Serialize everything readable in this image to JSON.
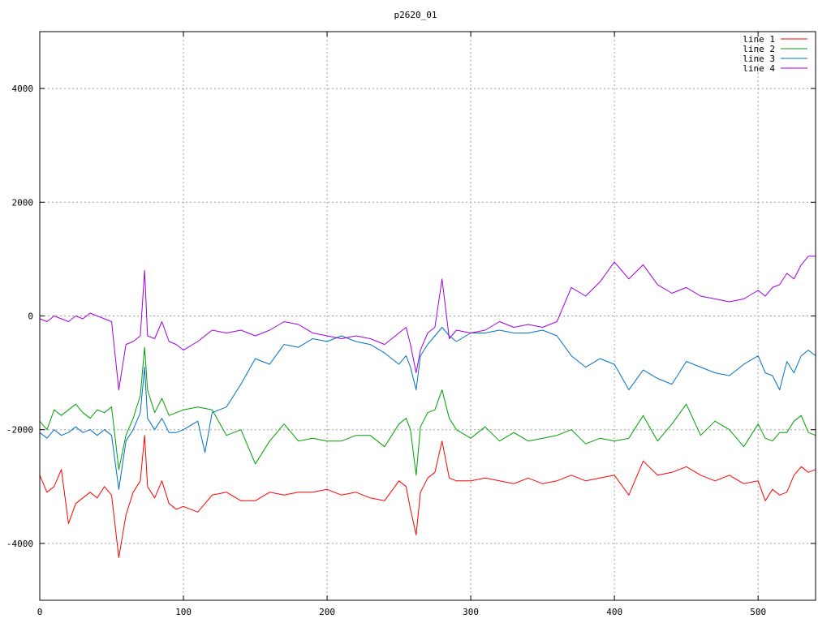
{
  "chart_data": {
    "type": "line",
    "title": "p2620_01",
    "xlabel": "",
    "ylabel": "",
    "xlim": [
      0,
      540
    ],
    "ylim": [
      -5000,
      5000
    ],
    "x_ticks": [
      0,
      100,
      200,
      300,
      400,
      500
    ],
    "y_ticks": [
      -4000,
      -2000,
      0,
      2000,
      4000
    ],
    "grid": true,
    "legend_position": "top-right",
    "series": [
      {
        "name": "line 1",
        "color": "#ff0000",
        "x": [
          0,
          5,
          10,
          15,
          20,
          25,
          30,
          35,
          40,
          45,
          50,
          55,
          60,
          65,
          70,
          73,
          75,
          80,
          85,
          90,
          95,
          100,
          110,
          120,
          130,
          140,
          150,
          160,
          170,
          180,
          190,
          200,
          210,
          220,
          230,
          240,
          250,
          255,
          258,
          262,
          265,
          270,
          275,
          280,
          285,
          290,
          300,
          310,
          320,
          330,
          340,
          350,
          360,
          370,
          380,
          390,
          400,
          410,
          420,
          430,
          440,
          450,
          460,
          470,
          480,
          490,
          500,
          505,
          510,
          515,
          520,
          525,
          530,
          535,
          540
        ],
        "values": [
          -2800,
          -3100,
          -3000,
          -2700,
          -3650,
          -3300,
          -3200,
          -3100,
          -3200,
          -3000,
          -3150,
          -4250,
          -3500,
          -3100,
          -2900,
          -2100,
          -3000,
          -3200,
          -2900,
          -3300,
          -3400,
          -3350,
          -3450,
          -3150,
          -3100,
          -3250,
          -3250,
          -3100,
          -3150,
          -3100,
          -3100,
          -3050,
          -3150,
          -3100,
          -3200,
          -3250,
          -2900,
          -3000,
          -3400,
          -3850,
          -3100,
          -2850,
          -2750,
          -2200,
          -2850,
          -2900,
          -2900,
          -2850,
          -2900,
          -2950,
          -2850,
          -2950,
          -2900,
          -2800,
          -2900,
          -2850,
          -2800,
          -3150,
          -2550,
          -2800,
          -2750,
          -2650,
          -2800,
          -2900,
          -2800,
          -2950,
          -2900,
          -3250,
          -3050,
          -3150,
          -3100,
          -2800,
          -2650,
          -2750,
          -2700
        ]
      },
      {
        "name": "line 2",
        "color": "#00a000",
        "x": [
          0,
          5,
          10,
          15,
          20,
          25,
          30,
          35,
          40,
          45,
          50,
          55,
          60,
          65,
          70,
          73,
          75,
          80,
          85,
          90,
          95,
          100,
          110,
          120,
          130,
          140,
          150,
          160,
          170,
          180,
          190,
          200,
          210,
          220,
          230,
          240,
          250,
          255,
          258,
          262,
          265,
          270,
          275,
          280,
          285,
          290,
          300,
          310,
          320,
          330,
          340,
          350,
          360,
          370,
          380,
          390,
          400,
          410,
          420,
          430,
          440,
          450,
          460,
          470,
          480,
          490,
          500,
          505,
          510,
          515,
          520,
          525,
          530,
          535,
          540
        ],
        "values": [
          -1850,
          -2000,
          -1650,
          -1750,
          -1650,
          -1550,
          -1700,
          -1800,
          -1650,
          -1700,
          -1600,
          -2700,
          -2100,
          -1800,
          -1400,
          -550,
          -1300,
          -1700,
          -1450,
          -1750,
          -1700,
          -1650,
          -1600,
          -1650,
          -2100,
          -2000,
          -2600,
          -2200,
          -1900,
          -2200,
          -2150,
          -2200,
          -2200,
          -2100,
          -2100,
          -2300,
          -1900,
          -1800,
          -2000,
          -2800,
          -1950,
          -1700,
          -1650,
          -1300,
          -1800,
          -2000,
          -2150,
          -1950,
          -2200,
          -2050,
          -2200,
          -2150,
          -2100,
          -2000,
          -2250,
          -2150,
          -2200,
          -2150,
          -1750,
          -2200,
          -1900,
          -1550,
          -2100,
          -1850,
          -2000,
          -2300,
          -1900,
          -2150,
          -2200,
          -2050,
          -2050,
          -1850,
          -1750,
          -2050,
          -2100
        ]
      },
      {
        "name": "line 3",
        "color": "#0070c8",
        "x": [
          0,
          5,
          10,
          15,
          20,
          25,
          30,
          35,
          40,
          45,
          50,
          55,
          60,
          65,
          70,
          73,
          75,
          80,
          85,
          90,
          95,
          100,
          110,
          115,
          120,
          130,
          140,
          150,
          160,
          170,
          180,
          190,
          200,
          210,
          220,
          230,
          240,
          250,
          255,
          258,
          262,
          265,
          270,
          275,
          280,
          285,
          290,
          300,
          310,
          320,
          330,
          340,
          350,
          360,
          370,
          380,
          390,
          400,
          410,
          420,
          430,
          440,
          450,
          460,
          470,
          480,
          490,
          500,
          505,
          510,
          515,
          520,
          525,
          530,
          535,
          540
        ],
        "values": [
          -2050,
          -2150,
          -2000,
          -2100,
          -2050,
          -1950,
          -2050,
          -2000,
          -2100,
          -2000,
          -2100,
          -3050,
          -2200,
          -2000,
          -1700,
          -900,
          -1800,
          -2000,
          -1800,
          -2050,
          -2050,
          -2000,
          -1850,
          -2400,
          -1700,
          -1600,
          -1200,
          -750,
          -850,
          -500,
          -550,
          -400,
          -450,
          -350,
          -450,
          -500,
          -650,
          -850,
          -700,
          -900,
          -1300,
          -700,
          -500,
          -350,
          -200,
          -350,
          -450,
          -300,
          -300,
          -250,
          -300,
          -300,
          -250,
          -350,
          -700,
          -900,
          -750,
          -850,
          -1300,
          -950,
          -1100,
          -1200,
          -800,
          -900,
          -1000,
          -1050,
          -850,
          -700,
          -1000,
          -1050,
          -1300,
          -800,
          -1000,
          -700,
          -600,
          -700
        ]
      },
      {
        "name": "line 4",
        "color": "#a000e0",
        "x": [
          0,
          5,
          10,
          15,
          20,
          25,
          30,
          35,
          40,
          45,
          50,
          55,
          60,
          65,
          70,
          73,
          75,
          80,
          85,
          90,
          95,
          100,
          110,
          120,
          130,
          140,
          150,
          160,
          170,
          180,
          190,
          200,
          210,
          220,
          230,
          240,
          250,
          255,
          258,
          262,
          265,
          270,
          275,
          280,
          285,
          290,
          300,
          310,
          320,
          330,
          340,
          350,
          360,
          370,
          380,
          390,
          400,
          410,
          420,
          430,
          440,
          450,
          460,
          470,
          480,
          490,
          500,
          505,
          510,
          515,
          520,
          525,
          530,
          535,
          540
        ],
        "values": [
          -50,
          -100,
          0,
          -50,
          -100,
          0,
          -50,
          50,
          0,
          -50,
          -100,
          -1300,
          -500,
          -450,
          -350,
          800,
          -350,
          -400,
          -100,
          -450,
          -500,
          -600,
          -450,
          -250,
          -300,
          -250,
          -350,
          -250,
          -100,
          -150,
          -300,
          -350,
          -400,
          -350,
          -400,
          -500,
          -300,
          -200,
          -500,
          -1000,
          -600,
          -300,
          -200,
          650,
          -400,
          -250,
          -300,
          -250,
          -100,
          -200,
          -150,
          -200,
          -100,
          500,
          350,
          600,
          950,
          650,
          900,
          550,
          400,
          500,
          350,
          300,
          250,
          300,
          450,
          350,
          500,
          550,
          750,
          650,
          900,
          1050,
          1050
        ]
      }
    ]
  }
}
